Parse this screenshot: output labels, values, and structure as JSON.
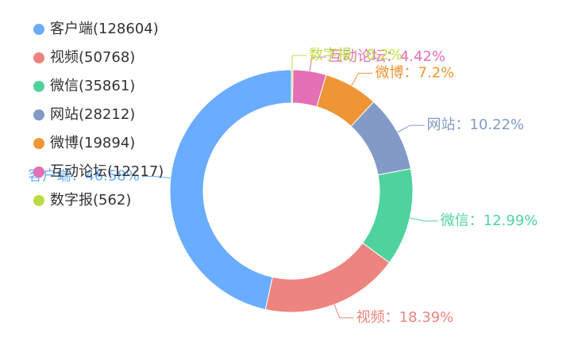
{
  "chart_data": {
    "type": "donut",
    "categories": [
      "客户端",
      "视频",
      "微信",
      "网站",
      "微博",
      "互动论坛",
      "数字报"
    ],
    "values": [
      128604,
      50768,
      35861,
      28212,
      19894,
      12217,
      562
    ],
    "legend_labels": [
      "客户端(128604)",
      "视频(50768)",
      "微信(35861)",
      "网站(28212)",
      "微博(19894)",
      "互动论坛(12217)",
      "数字报(562)"
    ],
    "value_labels": [
      "客户端：46.58%",
      "视频：18.39%",
      "微信：12.99%",
      "网站：10.22%",
      "微博：7.2%",
      "互动论坛：4.42%",
      "数字报：0.2%"
    ],
    "colors": [
      "#6aacff",
      "#ee847f",
      "#4fd39e",
      "#839ac6",
      "#ee9536",
      "#e46fb4",
      "#bcdc45"
    ],
    "legend_position": "top-left"
  }
}
